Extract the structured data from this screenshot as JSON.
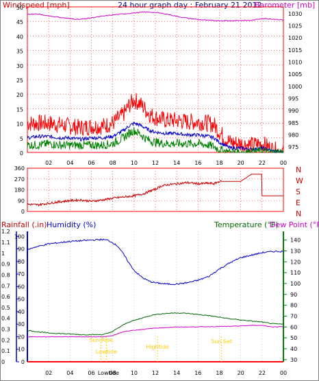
{
  "page": {
    "frame_color": "#808080",
    "background": "#ffffff"
  },
  "chart_data": [
    {
      "id": "wind",
      "type": "line",
      "title": "24 hour graph day : February 21 2012",
      "left_axis_label": "Windspeed [mph]",
      "right_axis_label": "Barometer [mb]",
      "x_ticks": [
        "02",
        "04",
        "06",
        "08",
        "10",
        "12",
        "14",
        "16",
        "18",
        "20",
        "22",
        "00"
      ],
      "x_range_hours": [
        0,
        24
      ],
      "y_left_ticks": [
        0,
        5,
        10,
        15,
        20,
        25,
        30,
        35,
        40,
        45,
        50
      ],
      "y_left_range": [
        0,
        50
      ],
      "y_right_ticks": [
        975,
        980,
        985,
        990,
        995,
        1000,
        1005,
        1010,
        1015,
        1020,
        1025,
        1030
      ],
      "y_right_range": [
        972.5,
        1032.5
      ],
      "colors": {
        "gust": "#ff0000",
        "average": "#0000cc",
        "low": "#008000",
        "barometer": "#cc00cc",
        "title": "#000080",
        "left_label": "#cc0000",
        "right_label": "#cc00cc",
        "grid": "#ff0000"
      },
      "series": [
        {
          "key": "gust",
          "x": [
            0,
            1,
            2,
            3,
            4,
            5,
            6,
            7,
            8,
            9,
            9.5,
            10,
            10.5,
            11,
            11.5,
            12,
            13,
            14,
            15,
            16,
            17,
            17.5,
            18,
            18.5,
            19,
            20,
            21,
            22,
            22.5,
            23,
            24
          ],
          "y": [
            10,
            10,
            10,
            9.5,
            9,
            8.5,
            9,
            9,
            10,
            13,
            16,
            18,
            17,
            15,
            13,
            12,
            11,
            11,
            10.5,
            10.5,
            10,
            9.5,
            7,
            5,
            3.5,
            3,
            2.5,
            3,
            2,
            1,
            0
          ]
        },
        {
          "key": "average",
          "x": [
            0,
            1,
            2,
            3,
            4,
            5,
            6,
            7,
            8,
            9,
            9.5,
            10,
            10.5,
            11,
            11.5,
            12,
            13,
            14,
            15,
            16,
            17,
            17.5,
            18,
            18.5,
            19,
            20,
            21,
            22,
            22.5,
            23,
            24
          ],
          "y": [
            5,
            5.5,
            5.5,
            5,
            5,
            4.5,
            5,
            5,
            5.5,
            7.5,
            9,
            10,
            9.5,
            8.5,
            7.5,
            7,
            6.5,
            6.5,
            6,
            6,
            5.5,
            5,
            3.5,
            2.5,
            1.5,
            1.5,
            1,
            1.5,
            1,
            0.5,
            0
          ]
        },
        {
          "key": "low",
          "x": [
            0,
            1,
            2,
            3,
            4,
            5,
            6,
            7,
            8,
            9,
            9.5,
            10,
            10.5,
            11,
            11.5,
            12,
            13,
            14,
            15,
            16,
            17,
            17.5,
            18,
            18.5,
            19,
            20,
            21,
            22,
            22.5,
            23,
            24
          ],
          "y": [
            2.5,
            2.5,
            3,
            2.5,
            2.5,
            2.5,
            2.5,
            2.5,
            3,
            5,
            6.5,
            7.5,
            6.5,
            5,
            4,
            3.5,
            3,
            3,
            3,
            3,
            2.5,
            2,
            1,
            0.5,
            0,
            0,
            0,
            0.5,
            0,
            0,
            0
          ]
        },
        {
          "key": "barometer",
          "x": [
            0,
            1,
            2,
            3,
            4,
            5,
            6,
            7,
            8,
            9,
            10,
            11,
            12,
            13,
            14,
            15,
            16,
            17,
            18,
            19,
            20,
            21,
            22,
            23,
            24
          ],
          "y": [
            1029.5,
            1029.5,
            1028.8,
            1028.2,
            1027.6,
            1027.4,
            1028.0,
            1028.6,
            1029.2,
            1029.6,
            1030.0,
            1030.4,
            1030.2,
            1029.6,
            1028.6,
            1027.8,
            1027.3,
            1026.9,
            1026.8,
            1026.8,
            1026.9,
            1026.9,
            1027.7,
            1027.5,
            1027.1
          ]
        }
      ]
    },
    {
      "id": "direction",
      "type": "line",
      "x_ticks": [
        "02",
        "04",
        "06",
        "08",
        "10",
        "12",
        "14",
        "16",
        "18",
        "20",
        "22",
        "00"
      ],
      "x_range_hours": [
        0,
        24
      ],
      "y_left_ticks": [
        0,
        90,
        180,
        270,
        360
      ],
      "y_left_range": [
        0,
        360
      ],
      "compass_labels": [
        "N",
        "W",
        "S",
        "E",
        "N"
      ],
      "colors": {
        "line": "#cc0000",
        "label": "#cc0000",
        "grid": "#ff0000"
      },
      "series": [
        {
          "key": "direction",
          "x": [
            0,
            1,
            2,
            3,
            4,
            5,
            6,
            7,
            8,
            9,
            10,
            11,
            11.5,
            12,
            12.5,
            13,
            14,
            15,
            16,
            17,
            17.5,
            18,
            19,
            20,
            21,
            21.5,
            22,
            23,
            24
          ],
          "y": [
            60,
            55,
            68,
            80,
            90,
            95,
            85,
            95,
            110,
            120,
            130,
            150,
            170,
            185,
            210,
            220,
            230,
            240,
            230,
            235,
            230,
            250,
            250,
            250,
            310,
            250,
            130,
            130,
            130
          ]
        }
      ]
    },
    {
      "id": "thermo",
      "type": "line",
      "labels": {
        "rainfall": "Rainfall (.in)",
        "humidity": "Humidity (%)",
        "temperature": "Temperature (°F)",
        "dewpoint": "Dew Point (°F)"
      },
      "x_ticks": [
        "02",
        "04",
        "06",
        "08",
        "10",
        "12",
        "14",
        "16",
        "18",
        "20",
        "22",
        "00"
      ],
      "x_range_hours": [
        0,
        24
      ],
      "rain_ticks": [
        "0",
        "0.1",
        "0.2",
        "0.3",
        "0.4",
        "0.5",
        "0.6",
        "0.7",
        "0.8",
        "0.9",
        "1",
        "1.1",
        "1.2"
      ],
      "humidity_ticks": [
        "0",
        "10",
        "20",
        "30",
        "40",
        "50",
        "60",
        "70",
        "80",
        "90",
        "100"
      ],
      "temperature_ticks": [
        "30",
        "40",
        "50",
        "60",
        "70",
        "80",
        "90",
        "100",
        "110",
        "120",
        "130",
        "140"
      ],
      "temperature_range": [
        28,
        148
      ],
      "humidity_range": [
        0,
        104
      ],
      "colors": {
        "rain": "#ff0000",
        "humidity": "#0000cc",
        "temperature": "#006600",
        "dewpoint": "#cc00cc",
        "rain_label": "#cc0000",
        "humidity_label": "#0000cc",
        "temperature_label": "#006600",
        "dewpoint_label": "#cc00cc",
        "axis_blue": "#0000cc",
        "axis_green": "#008000",
        "events": "#ffcc00"
      },
      "events": [
        {
          "label": "Sun Rise",
          "hour": 6.9
        },
        {
          "label": "Lowtide",
          "hour": 7.4
        },
        {
          "label": "Hightide",
          "hour": 12.2
        },
        {
          "label": "Sun Set",
          "hour": 18.2
        }
      ],
      "bottom_extra_label": "Lowtide",
      "series": [
        {
          "key": "humidity",
          "x": [
            0,
            0.5,
            1,
            2,
            3,
            4,
            5,
            6,
            7,
            7.5,
            8,
            8.5,
            9,
            9.5,
            10,
            10.5,
            11,
            11.5,
            12,
            13,
            14,
            15,
            16,
            17,
            17.5,
            18,
            19,
            20,
            21,
            22,
            23,
            24
          ],
          "y": [
            89,
            91,
            92,
            94,
            95,
            96,
            96.5,
            97,
            97.5,
            97,
            95,
            92,
            86,
            79,
            73,
            69,
            66,
            64,
            63,
            62,
            62,
            63,
            65,
            68,
            71,
            74,
            79,
            83,
            85,
            87,
            88,
            88
          ]
        },
        {
          "key": "temperature",
          "x": [
            0,
            1,
            2,
            3,
            4,
            5,
            6,
            6.5,
            7,
            7.5,
            8,
            8.5,
            9,
            9.5,
            10,
            10.5,
            11,
            11.5,
            12,
            13,
            14,
            15,
            16,
            17,
            18,
            19,
            20,
            21,
            22,
            23,
            24
          ],
          "y": [
            57,
            55.5,
            54.5,
            54,
            53.5,
            53,
            53,
            53,
            53,
            54,
            56,
            59,
            62,
            64.5,
            66,
            67.5,
            69,
            70.5,
            71.5,
            72.5,
            73,
            72.5,
            71.5,
            70.5,
            69,
            67.5,
            66.5,
            65.5,
            64.5,
            63,
            62.5
          ]
        },
        {
          "key": "dewpoint",
          "x": [
            0,
            1,
            2,
            3,
            4,
            5,
            6,
            7,
            8,
            8.5,
            9,
            9.5,
            10,
            11,
            12,
            13,
            14,
            15,
            16,
            17,
            18,
            19,
            20,
            21,
            22,
            23,
            24
          ],
          "y": [
            51,
            51,
            51,
            51,
            51,
            51,
            51,
            51,
            52,
            54,
            55.5,
            56.5,
            57,
            58,
            59,
            59.5,
            60,
            60,
            60.2,
            60.3,
            60.5,
            60.5,
            61,
            61.5,
            61.5,
            60,
            60.5
          ]
        }
      ]
    }
  ]
}
